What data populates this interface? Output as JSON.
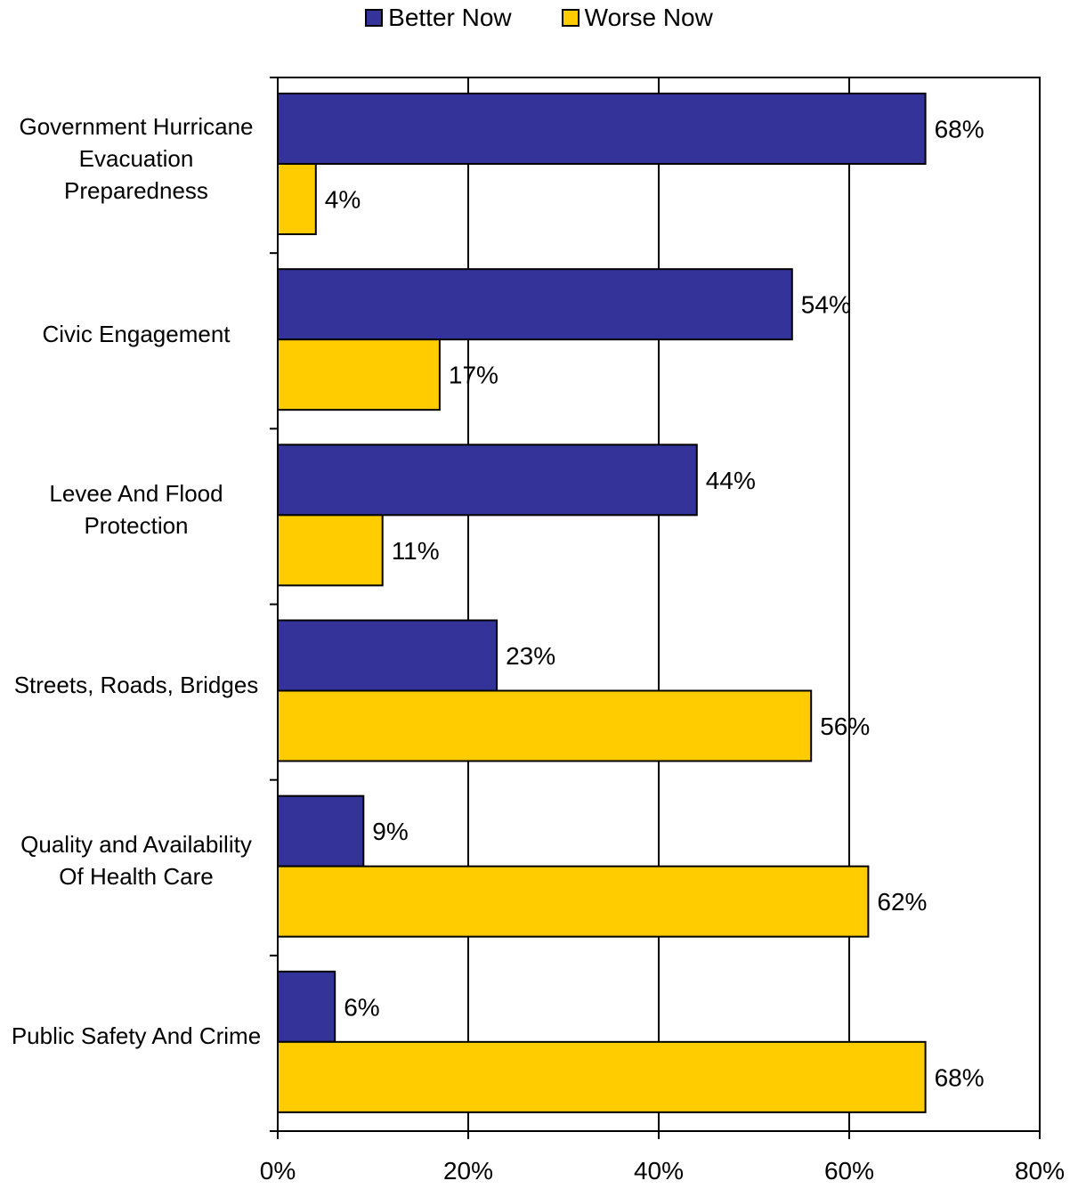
{
  "chart_data": {
    "type": "bar",
    "orientation": "horizontal",
    "categories": [
      "Government Hurricane Evacuation Preparedness",
      "Civic Engagement",
      "Levee And Flood Protection",
      "Streets, Roads, Bridges",
      "Quality and Availability Of Health Care",
      "Public Safety And Crime"
    ],
    "series": [
      {
        "name": "Better Now",
        "color": "#333399",
        "values": [
          68,
          54,
          44,
          23,
          9,
          6
        ]
      },
      {
        "name": "Worse Now",
        "color": "#FFCC00",
        "values": [
          4,
          17,
          11,
          56,
          62,
          68
        ]
      }
    ],
    "xlim": [
      0,
      80
    ],
    "xticks": [
      "0%",
      "20%",
      "40%",
      "60%",
      "80%"
    ],
    "value_suffix": "%",
    "grid": "vertical",
    "legend_position": "top"
  }
}
